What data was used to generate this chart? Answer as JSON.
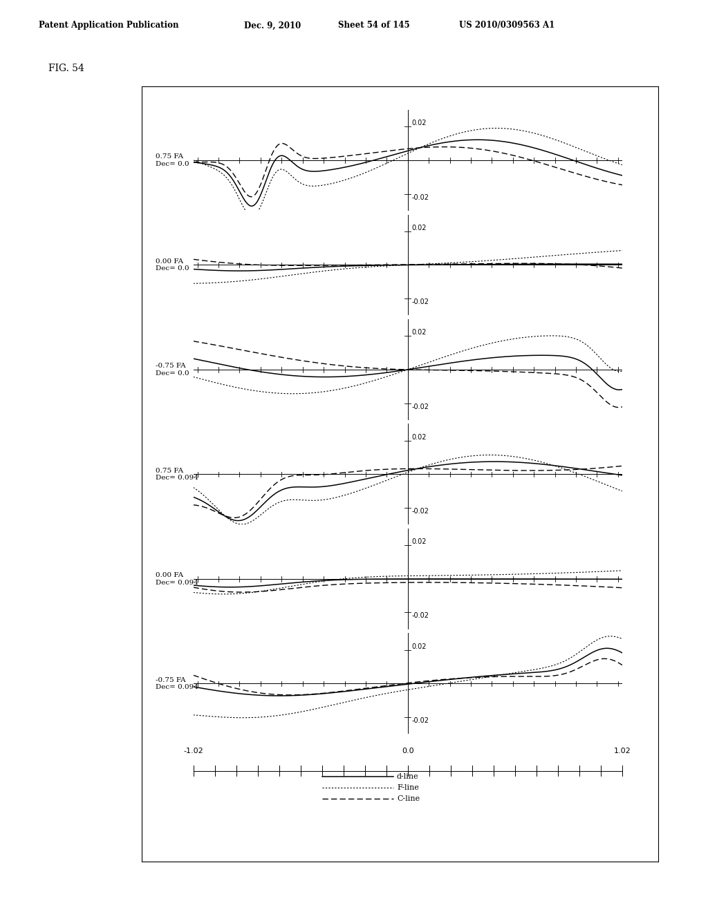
{
  "fig_label": "FIG. 54",
  "header_left": "Patent Application Publication",
  "header_mid1": "Dec. 9, 2010",
  "header_mid2": "Sheet 54 of 145",
  "header_right": "US 2010/0309563 A1",
  "xlim": [
    -1.02,
    1.02
  ],
  "ylim": [
    -0.03,
    0.03
  ],
  "subplots": [
    {
      "label": "0.75 FA\nDec= 0.0"
    },
    {
      "label": "0.00 FA\nDec= 0.0"
    },
    {
      "label": "-0.75 FA\nDec= 0.0"
    },
    {
      "label": "0.75 FA\nDec= 0.094"
    },
    {
      "label": "0.00 FA\nDec= 0.094"
    },
    {
      "label": "-0.75 FA\nDec= 0.094"
    }
  ],
  "legend_entries": [
    "d-line",
    "F-line",
    "C-line"
  ]
}
